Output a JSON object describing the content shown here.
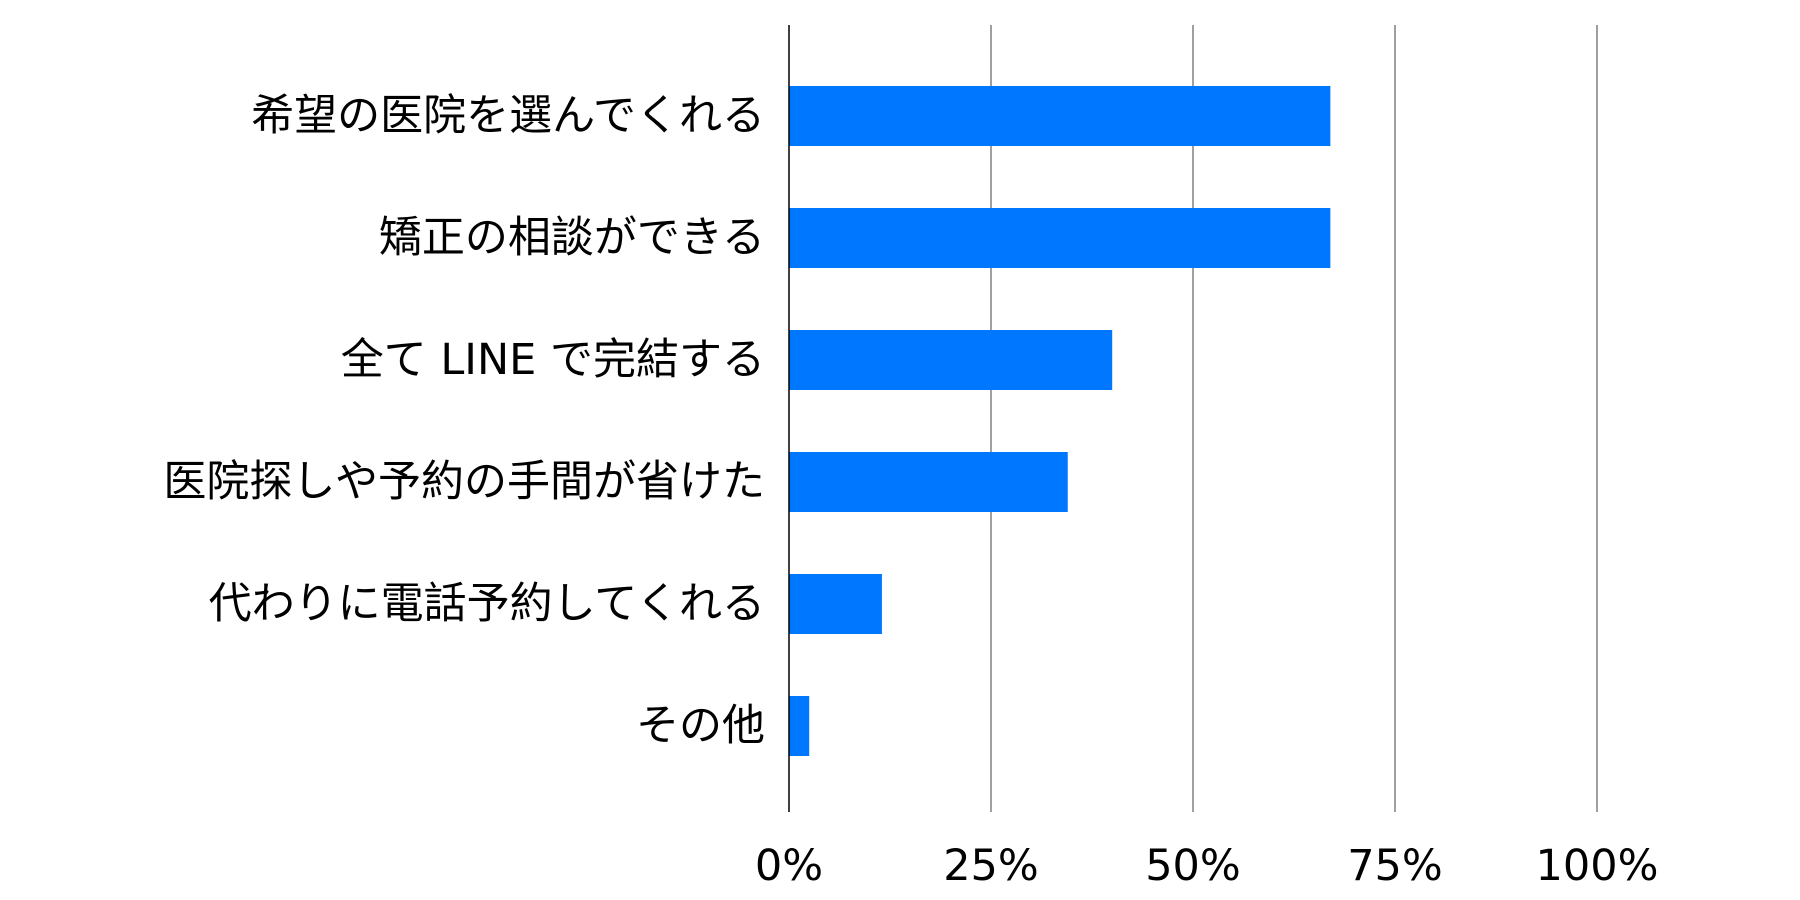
{
  "chart_data": {
    "type": "bar",
    "orientation": "horizontal",
    "title": "",
    "xlabel": "",
    "ylabel": "",
    "categories": [
      "希望の医院を選んでくれる",
      "矯正の相談ができる",
      "全て LINE で完結する",
      "医院探しや予約の手間が省けた",
      "代わりに電話予約してくれる",
      "その他"
    ],
    "values": [
      0.67,
      0.67,
      0.4,
      0.345,
      0.115,
      0.025
    ],
    "xlim": [
      0,
      1
    ],
    "xticks": [
      0,
      0.25,
      0.5,
      0.75,
      1
    ],
    "xtick_labels": [
      "0%",
      "25%",
      "50%",
      "75%",
      "100%"
    ],
    "grid": "vertical",
    "legend": "none",
    "colors": {
      "bar": "#0077FF",
      "grid": "#808080",
      "axis": "#000000",
      "text": "#000000"
    }
  }
}
